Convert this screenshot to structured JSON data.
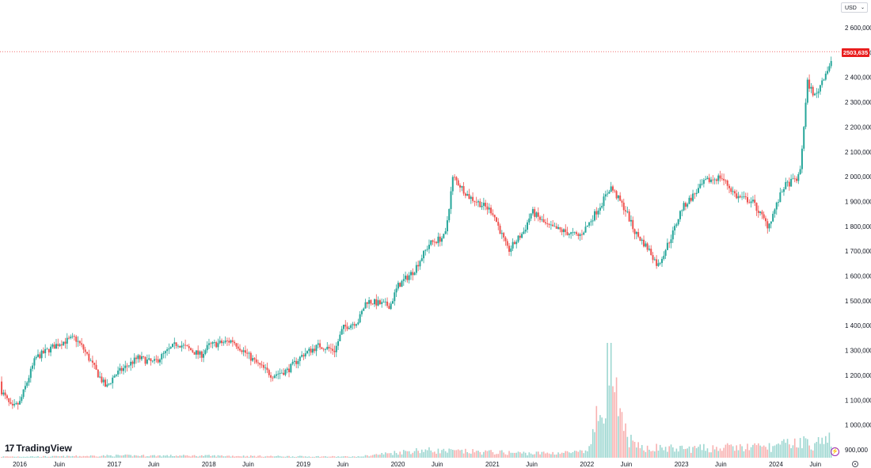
{
  "currency": {
    "selected": "USD"
  },
  "branding": {
    "logo_text": "TradingView",
    "logo_mark": "17"
  },
  "last_price_label": "2503,635",
  "colors": {
    "up": "#26a69a",
    "down": "#ef5350",
    "last_price": "#e91e1e",
    "grid": "#f0f3fa"
  },
  "icons": {
    "flash": "lightning-icon",
    "settings": "gear-icon",
    "dropdown": "chevron-down-icon"
  },
  "chart_data": {
    "type": "candlestick",
    "title": "",
    "xlabel": "",
    "ylabel": "",
    "ylim": [
      870,
      2640
    ],
    "grid": false,
    "y_ticks": [
      "2 600,000",
      "2 500,000",
      "2 400,000",
      "2 300,000",
      "2 200,000",
      "2 100,000",
      "2 000,000",
      "1 900,000",
      "1 800,000",
      "1 700,000",
      "1 600,000",
      "1 500,000",
      "1 400,000",
      "1 300,000",
      "1 200,000",
      "1 100,000",
      "1 000,000",
      "900,000"
    ],
    "y_tick_values": [
      2600,
      2500,
      2400,
      2300,
      2200,
      2100,
      2000,
      1900,
      1800,
      1700,
      1600,
      1500,
      1400,
      1300,
      1200,
      1100,
      1000,
      900
    ],
    "x_ticks": [
      "2016",
      "Juin",
      "2017",
      "Juin",
      "2018",
      "Juin",
      "2019",
      "Juin",
      "2020",
      "Juin",
      "2021",
      "Juin",
      "2022",
      "Juin",
      "2023",
      "Juin",
      "2024",
      "Juin"
    ],
    "x_tick_dates": [
      "2016-01",
      "2016-06",
      "2017-01",
      "2017-06",
      "2018-01",
      "2018-06",
      "2019-01",
      "2019-06",
      "2020-01",
      "2020-06",
      "2021-01",
      "2021-06",
      "2022-01",
      "2022-06",
      "2023-01",
      "2023-06",
      "2024-01",
      "2024-06"
    ],
    "x_range": [
      "2015-10",
      "2024-08"
    ],
    "last_price": 2503.635,
    "price_path": {
      "x": [
        "2015-10",
        "2015-12",
        "2016-01",
        "2016-03",
        "2016-06",
        "2016-08",
        "2016-09",
        "2016-11",
        "2016-12",
        "2017-01",
        "2017-04",
        "2017-06",
        "2017-09",
        "2017-12",
        "2018-01",
        "2018-04",
        "2018-07",
        "2018-09",
        "2018-11",
        "2019-01",
        "2019-03",
        "2019-05",
        "2019-06",
        "2019-08",
        "2019-09",
        "2019-12",
        "2020-01",
        "2020-03",
        "2020-05",
        "2020-07",
        "2020-08",
        "2020-10",
        "2020-12",
        "2021-01",
        "2021-03",
        "2021-05",
        "2021-06",
        "2021-08",
        "2021-10",
        "2021-12",
        "2022-01",
        "2022-03",
        "2022-04",
        "2022-06",
        "2022-07",
        "2022-09",
        "2022-10",
        "2022-12",
        "2023-01",
        "2023-04",
        "2023-06",
        "2023-08",
        "2023-10",
        "2023-12",
        "2024-02",
        "2024-04",
        "2024-05",
        "2024-06",
        "2024-07",
        "2024-08"
      ],
      "y": [
        1175,
        1065,
        1090,
        1270,
        1330,
        1350,
        1310,
        1200,
        1150,
        1200,
        1270,
        1250,
        1330,
        1280,
        1320,
        1340,
        1250,
        1200,
        1220,
        1285,
        1320,
        1300,
        1390,
        1420,
        1500,
        1480,
        1560,
        1620,
        1730,
        1760,
        2000,
        1920,
        1880,
        1860,
        1700,
        1780,
        1860,
        1800,
        1780,
        1760,
        1800,
        1900,
        1960,
        1860,
        1780,
        1700,
        1640,
        1780,
        1870,
        1980,
        2000,
        1920,
        1900,
        1800,
        1960,
        2000,
        2380,
        2320,
        2400,
        2460
      ]
    },
    "volume_profile": {
      "x": [
        "2015-10",
        "2016-06",
        "2017-01",
        "2018-01",
        "2019-01",
        "2019-08",
        "2020-01",
        "2020-04",
        "2020-07",
        "2021-01",
        "2021-06",
        "2022-01",
        "2022-03",
        "2022-04",
        "2022-05",
        "2022-07",
        "2023-01",
        "2023-06",
        "2024-01",
        "2024-04",
        "2024-06",
        "2024-08"
      ],
      "values": [
        0.01,
        0.012,
        0.02,
        0.018,
        0.012,
        0.01,
        0.05,
        0.07,
        0.06,
        0.05,
        0.04,
        0.05,
        0.5,
        1.0,
        0.35,
        0.1,
        0.08,
        0.09,
        0.1,
        0.15,
        0.12,
        0.18
      ]
    }
  }
}
